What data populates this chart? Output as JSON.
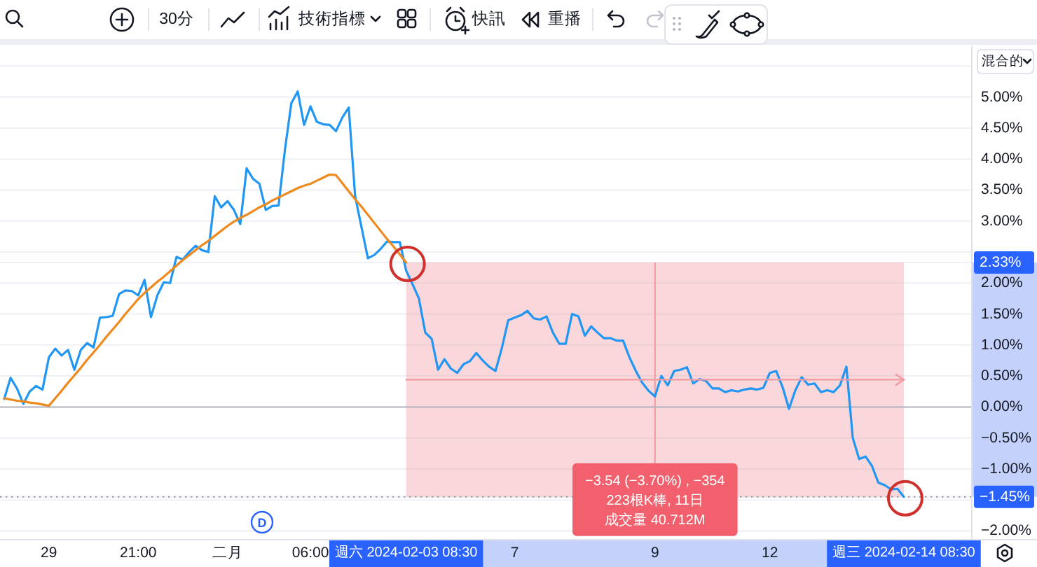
{
  "chart_data": {
    "type": "line",
    "categories": [
      null,
      null,
      null,
      null,
      null,
      null,
      null,
      "29",
      null,
      null,
      null,
      null,
      null,
      null,
      null,
      null,
      null,
      null,
      null,
      null,
      null,
      "21:00",
      null,
      null,
      null,
      null,
      null,
      null,
      null,
      null,
      null,
      null,
      null,
      null,
      null,
      "二月",
      null,
      null,
      null,
      null,
      null,
      null,
      null,
      null,
      null,
      null,
      null,
      null,
      "06:00",
      null,
      null,
      null,
      null,
      null,
      null,
      null,
      null,
      null,
      null,
      null,
      null,
      null,
      null,
      "週六 2024-02-03 08:30",
      null,
      null,
      null,
      null,
      null,
      null,
      null,
      null,
      null,
      null,
      null,
      null,
      null,
      null,
      null,
      null,
      "7",
      null,
      null,
      null,
      null,
      null,
      null,
      null,
      null,
      null,
      null,
      null,
      null,
      null,
      null,
      null,
      null,
      null,
      null,
      null,
      null,
      null,
      "9",
      null,
      null,
      null,
      null,
      null,
      null,
      null,
      null,
      null,
      null,
      null,
      null,
      null,
      null,
      null,
      null,
      null,
      "12",
      null,
      null,
      null,
      null,
      null,
      null,
      null,
      null,
      null,
      null,
      null,
      null,
      null,
      null,
      null,
      null,
      null,
      null,
      null,
      null,
      "週三 2024-02-14 08:30"
    ],
    "series": [
      {
        "color": "#2196f3",
        "values": [
          0.13,
          0.47,
          0.3,
          0.05,
          0.25,
          0.34,
          0.28,
          0.8,
          0.94,
          0.83,
          0.92,
          0.6,
          0.92,
          1.03,
          0.96,
          1.44,
          1.45,
          1.47,
          1.82,
          1.88,
          1.87,
          1.8,
          2.05,
          1.45,
          1.8,
          2.01,
          2.0,
          2.42,
          2.38,
          2.5,
          2.6,
          2.53,
          2.5,
          3.4,
          3.22,
          3.32,
          3.18,
          2.95,
          3.85,
          3.68,
          3.6,
          3.18,
          3.24,
          3.25,
          4.15,
          4.9,
          5.09,
          4.55,
          4.85,
          4.6,
          4.56,
          4.55,
          4.45,
          4.67,
          4.83,
          3.4,
          2.9,
          2.4,
          2.45,
          2.55,
          2.67,
          2.66,
          2.66,
          2.2,
          1.98,
          1.75,
          1.2,
          1.1,
          0.6,
          0.77,
          0.62,
          0.55,
          0.69,
          0.74,
          0.87,
          0.75,
          0.65,
          0.58,
          0.95,
          1.4,
          1.44,
          1.48,
          1.55,
          1.43,
          1.41,
          1.46,
          1.2,
          1.02,
          1.02,
          1.5,
          1.46,
          1.15,
          1.3,
          1.2,
          1.11,
          1.11,
          1.07,
          1.07,
          0.8,
          0.58,
          0.39,
          0.26,
          0.17,
          0.5,
          0.35,
          0.58,
          0.6,
          0.64,
          0.38,
          0.45,
          0.42,
          0.3,
          0.3,
          0.24,
          0.27,
          0.25,
          0.28,
          0.3,
          0.28,
          0.31,
          0.55,
          0.58,
          0.32,
          -0.03,
          0.27,
          0.48,
          0.36,
          0.38,
          0.24,
          0.27,
          0.24,
          0.35,
          0.65,
          -0.5,
          -0.84,
          -0.8,
          -0.95,
          -1.22,
          -1.26,
          -1.33,
          -1.32,
          -1.45
        ]
      },
      {
        "color": "#ee8a1d",
        "values": [
          0.14,
          0.12,
          0.1,
          0.09,
          0.07,
          0.06,
          0.04,
          0.02,
          0.14,
          0.26,
          0.39,
          0.51,
          0.63,
          0.76,
          0.88,
          1.0,
          1.13,
          1.25,
          1.37,
          1.5,
          1.62,
          1.74,
          1.84,
          1.93,
          2.02,
          2.1,
          2.19,
          2.28,
          2.37,
          2.45,
          2.53,
          2.61,
          2.68,
          2.76,
          2.84,
          2.92,
          2.99,
          3.05,
          3.1,
          3.16,
          3.22,
          3.27,
          3.33,
          3.38,
          3.43,
          3.48,
          3.53,
          3.57,
          3.6,
          3.65,
          3.7,
          3.75,
          3.74,
          3.61,
          3.48,
          3.35,
          3.23,
          3.1,
          2.97,
          2.84,
          2.71,
          2.59,
          2.46,
          2.33,
          null,
          null,
          null,
          null,
          null,
          null,
          null,
          null,
          null,
          null,
          null,
          null,
          null,
          null,
          null,
          null,
          null,
          null,
          null,
          null,
          null,
          null,
          null,
          null,
          null,
          null,
          null,
          null,
          null,
          null,
          null,
          null,
          null,
          null,
          null,
          null,
          null,
          null,
          null,
          null,
          null,
          null,
          null,
          null,
          null,
          null,
          null,
          null,
          null,
          null,
          null,
          null,
          null,
          null,
          null,
          null,
          null,
          null,
          null,
          null,
          null,
          null,
          null,
          null,
          null,
          null,
          null,
          null,
          null,
          null,
          null,
          null,
          null,
          null,
          null,
          null,
          null,
          null
        ]
      },
      {
        "type": "line",
        "color": "#f09aa2",
        "x": [
          "週六 2024-02-03 08:30",
          "週三 2024-02-14 08:30"
        ],
        "values": [
          0.44,
          0.44
        ],
        "lower": [
          -1.45,
          -1.45
        ],
        "upper": [
          2.33,
          2.33
        ]
      }
    ],
    "ylim": [
      -2.13,
      5.82
    ],
    "yticks": [
      {
        "value": -2,
        "label": "−2.00%"
      },
      {
        "value": -1.5,
        "label": null
      },
      {
        "value": -1.45,
        "label": "−1.45%"
      },
      {
        "value": -1,
        "label": "−1.00%"
      },
      {
        "value": -0.5,
        "label": "−0.50%"
      },
      {
        "value": 0,
        "label": "0.00%"
      },
      {
        "value": 0.5,
        "label": "0.50%"
      },
      {
        "value": 1,
        "label": "1.00%"
      },
      {
        "value": 1.5,
        "label": "1.50%"
      },
      {
        "value": 2,
        "label": "2.00%"
      },
      {
        "value": 2.33,
        "label": "2.33%"
      },
      {
        "value": 2.5,
        "label": null
      },
      {
        "value": 3,
        "label": "3.00%"
      },
      {
        "value": 3.5,
        "label": "3.50%"
      },
      {
        "value": 4,
        "label": "4.00%"
      },
      {
        "value": 4.5,
        "label": "4.50%"
      },
      {
        "value": 5,
        "label": "5.00%"
      },
      {
        "value": 5.5,
        "label": null
      }
    ],
    "grid": "y",
    "ref_lines": [
      {
        "axis": "y",
        "value": 0,
        "color": "#b2b5be",
        "line_style": "solid"
      },
      {
        "axis": "y",
        "value": -1.45,
        "color": "#9598a1",
        "line_style": "dotted"
      }
    ],
    "annotations": [
      {
        "text": "−3.54 (−3.70%) , −354",
        "y": -1.45
      },
      "223根K棒, 11日",
      "成交量 40.712M",
      "D",
      "30分",
      "技術指標",
      "快訊",
      "重播",
      "混合的"
    ]
  }
}
